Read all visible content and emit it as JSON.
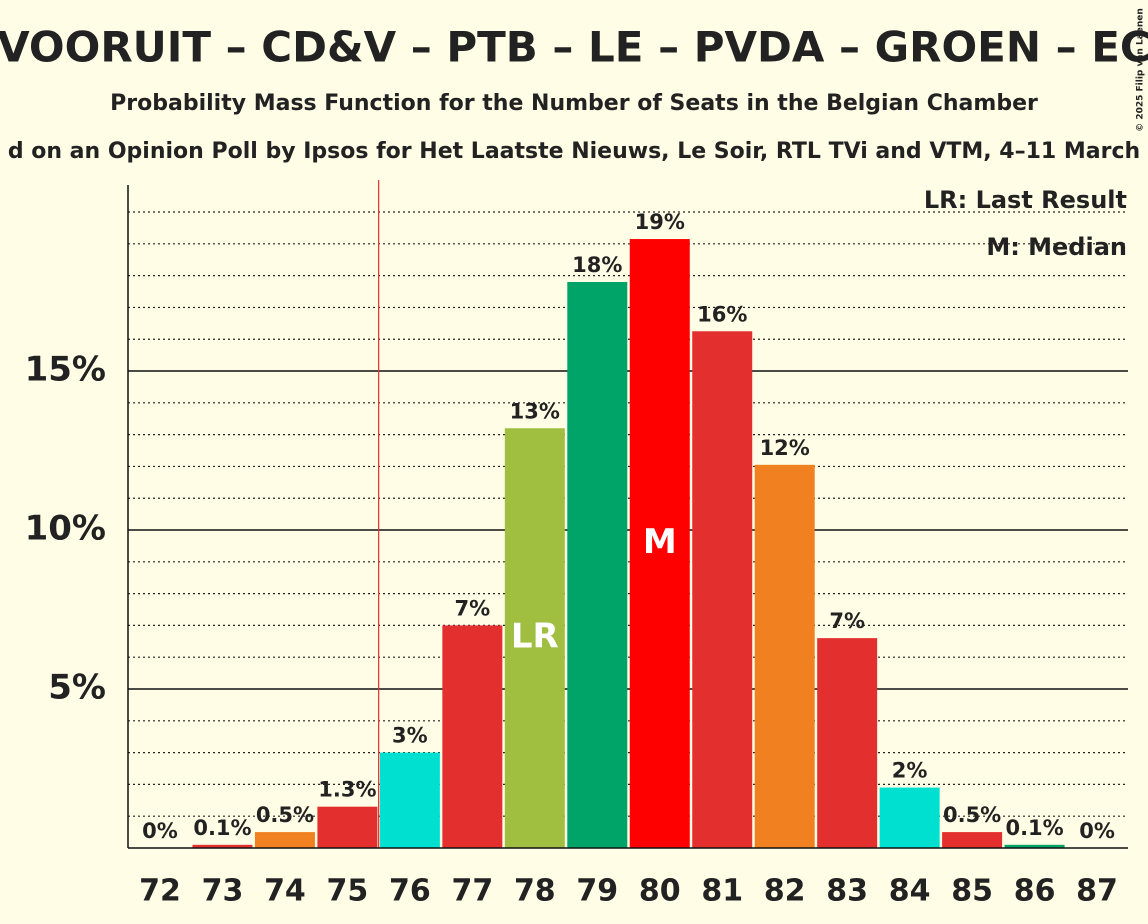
{
  "chart_data": {
    "type": "bar",
    "title": "– VOORUIT – CD&V – PTB – LE – PVDA – GROEN – ECO",
    "subtitle": "Probability Mass Function for the Number of Seats in the Belgian Chamber",
    "subtitle2": "d on an Opinion Poll by Ipsos for Het Laatste Nieuws, Le Soir, RTL TVi and VTM, 4–11 March",
    "copyright": "© 2025 Filip van Laenen",
    "categories": [
      "72",
      "73",
      "74",
      "75",
      "76",
      "77",
      "78",
      "79",
      "80",
      "81",
      "82",
      "83",
      "84",
      "85",
      "86",
      "87"
    ],
    "values": [
      0,
      0.1,
      0.5,
      1.3,
      3.0,
      7.0,
      13.2,
      17.8,
      19.15,
      16.25,
      12.05,
      6.6,
      1.9,
      0.5,
      0.1,
      0
    ],
    "value_labels": [
      "0%",
      "0.1%",
      "0.5%",
      "1.3%",
      "3%",
      "7%",
      "13%",
      "18%",
      "19%",
      "16%",
      "12%",
      "7%",
      "2%",
      "0.5%",
      "0.1%",
      "0%"
    ],
    "colors": [
      "#e3302f",
      "#e3302f",
      "#f08020",
      "#e3302f",
      "#00e0d0",
      "#e3302f",
      "#a0be40",
      "#00a468",
      "#ff0000",
      "#e3302f",
      "#f08020",
      "#e3302f",
      "#00e0d0",
      "#e3302f",
      "#00a468",
      "#e3302f"
    ],
    "bar_labels": [
      null,
      null,
      null,
      null,
      null,
      null,
      "LR",
      null,
      "M",
      null,
      null,
      null,
      null,
      null,
      null,
      null
    ],
    "majority": 76,
    "legend": [
      "LR: Last Result",
      "M: Median"
    ],
    "ylim": [
      0,
      20.85
    ],
    "yticks": [
      {
        "value": 5,
        "label": "5%"
      },
      {
        "value": 10,
        "label": "10%"
      },
      {
        "value": 15,
        "label": "15%"
      }
    ],
    "minor_yticks": [
      1,
      2,
      3,
      4,
      6,
      7,
      8,
      9,
      11,
      12,
      13,
      14,
      16,
      17,
      18,
      19,
      20
    ],
    "grid": true
  }
}
